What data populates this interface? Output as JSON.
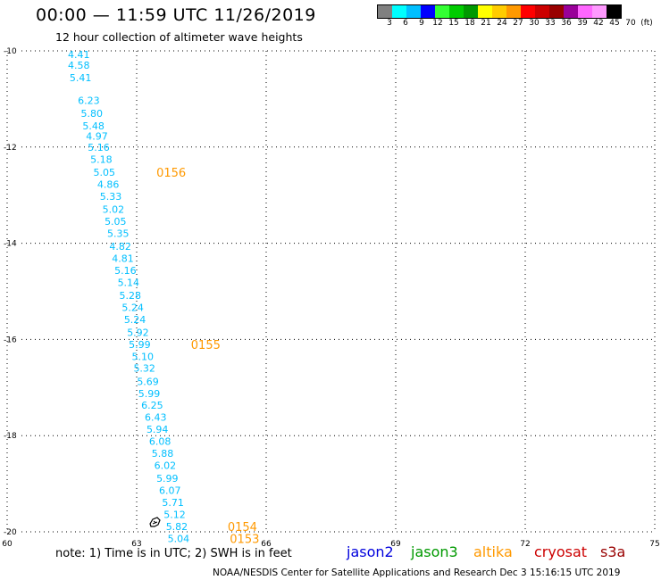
{
  "header": {
    "title": "00:00 — 11:59 UTC 11/26/2019",
    "subtitle": "12 hour collection of altimeter wave heights"
  },
  "legend": {
    "colors": [
      "#808080",
      "#00ffff",
      "#00bfff",
      "#0000ff",
      "#33ff33",
      "#00cc00",
      "#009900",
      "#ffff00",
      "#ffcc00",
      "#ff9900",
      "#ff0000",
      "#cc0000",
      "#990000",
      "#990099",
      "#ff66ff",
      "#ff99ff",
      "#000000"
    ],
    "labels": [
      "3",
      "6",
      "9",
      "12",
      "15",
      "18",
      "21",
      "24",
      "27",
      "30",
      "33",
      "36",
      "39",
      "42",
      "45",
      "70",
      "(ft)"
    ]
  },
  "chart_data": {
    "type": "scatter",
    "x_ticks": [
      "60",
      "63",
      "66",
      "69",
      "72",
      "75"
    ],
    "y_ticks": [
      "-10",
      "-12",
      "-14",
      "-16",
      "-18",
      "-20"
    ],
    "xlim": [
      60,
      75
    ],
    "ylim": [
      -20,
      -10
    ],
    "grid": true,
    "point_color": "#00bfff",
    "points": [
      {
        "x": 61.66,
        "y": -10.07,
        "label": "4.41"
      },
      {
        "x": 61.66,
        "y": -10.3,
        "label": "4.58"
      },
      {
        "x": 61.7,
        "y": -10.56,
        "label": "5.41"
      },
      {
        "x": 61.89,
        "y": -11.03,
        "label": "6.23"
      },
      {
        "x": 61.96,
        "y": -11.3,
        "label": "5.80"
      },
      {
        "x": 62.0,
        "y": -11.56,
        "label": "5.48"
      },
      {
        "x": 62.08,
        "y": -11.77,
        "label": "4.97"
      },
      {
        "x": 62.12,
        "y": -12.0,
        "label": "5.16"
      },
      {
        "x": 62.18,
        "y": -12.25,
        "label": "5.18"
      },
      {
        "x": 62.25,
        "y": -12.52,
        "label": "5.05"
      },
      {
        "x": 62.34,
        "y": -12.77,
        "label": "4.86"
      },
      {
        "x": 62.4,
        "y": -13.02,
        "label": "5.33"
      },
      {
        "x": 62.46,
        "y": -13.29,
        "label": "5.02"
      },
      {
        "x": 62.51,
        "y": -13.54,
        "label": "5.05"
      },
      {
        "x": 62.57,
        "y": -13.79,
        "label": "5.35"
      },
      {
        "x": 62.62,
        "y": -14.06,
        "label": "4.82"
      },
      {
        "x": 62.68,
        "y": -14.31,
        "label": "4.81"
      },
      {
        "x": 62.74,
        "y": -14.56,
        "label": "5.16"
      },
      {
        "x": 62.81,
        "y": -14.81,
        "label": "5.14"
      },
      {
        "x": 62.85,
        "y": -15.08,
        "label": "5.28"
      },
      {
        "x": 62.91,
        "y": -15.33,
        "label": "5.24"
      },
      {
        "x": 62.96,
        "y": -15.58,
        "label": "5.24"
      },
      {
        "x": 63.03,
        "y": -15.85,
        "label": "5.92"
      },
      {
        "x": 63.07,
        "y": -16.1,
        "label": "5.99"
      },
      {
        "x": 63.14,
        "y": -16.35,
        "label": "5.10"
      },
      {
        "x": 63.18,
        "y": -16.6,
        "label": "5.32"
      },
      {
        "x": 63.26,
        "y": -16.87,
        "label": "5.69"
      },
      {
        "x": 63.29,
        "y": -17.12,
        "label": "5.99"
      },
      {
        "x": 63.36,
        "y": -17.37,
        "label": "6.25"
      },
      {
        "x": 63.44,
        "y": -17.62,
        "label": "6.43"
      },
      {
        "x": 63.48,
        "y": -17.87,
        "label": "5.94"
      },
      {
        "x": 63.54,
        "y": -18.12,
        "label": "6.08"
      },
      {
        "x": 63.6,
        "y": -18.37,
        "label": "5.88"
      },
      {
        "x": 63.66,
        "y": -18.62,
        "label": "6.02"
      },
      {
        "x": 63.71,
        "y": -18.89,
        "label": "5.99"
      },
      {
        "x": 63.77,
        "y": -19.14,
        "label": "6.07"
      },
      {
        "x": 63.84,
        "y": -19.39,
        "label": "5.71"
      },
      {
        "x": 63.88,
        "y": -19.64,
        "label": "5.12"
      },
      {
        "x": 63.93,
        "y": -19.89,
        "label": "5.82"
      },
      {
        "x": 63.97,
        "y": -20.14,
        "label": "5.04"
      }
    ],
    "time_labels": [
      {
        "x": 63.8,
        "y": -12.52,
        "label": "0156",
        "color": "#ff9900"
      },
      {
        "x": 64.6,
        "y": -16.1,
        "label": "0155",
        "color": "#ff9900"
      },
      {
        "x": 65.45,
        "y": -19.89,
        "label": "0154",
        "color": "#ff9900"
      },
      {
        "x": 65.5,
        "y": -20.14,
        "label": "0153",
        "color": "#ff9900"
      }
    ]
  },
  "footer": {
    "note": "note: 1) Time is in UTC; 2) SWH is in feet",
    "satellites": [
      {
        "name": "jason2",
        "color": "#0000dd"
      },
      {
        "name": "jason3",
        "color": "#009900"
      },
      {
        "name": "altika",
        "color": "#ff9900"
      },
      {
        "name": "cryosat",
        "color": "#cc0000"
      },
      {
        "name": "s3a",
        "color": "#990000"
      }
    ],
    "credit": "NOAA/NESDIS Center for Satellite Applications and Research    Dec  3 15:16:15 UTC 2019"
  }
}
